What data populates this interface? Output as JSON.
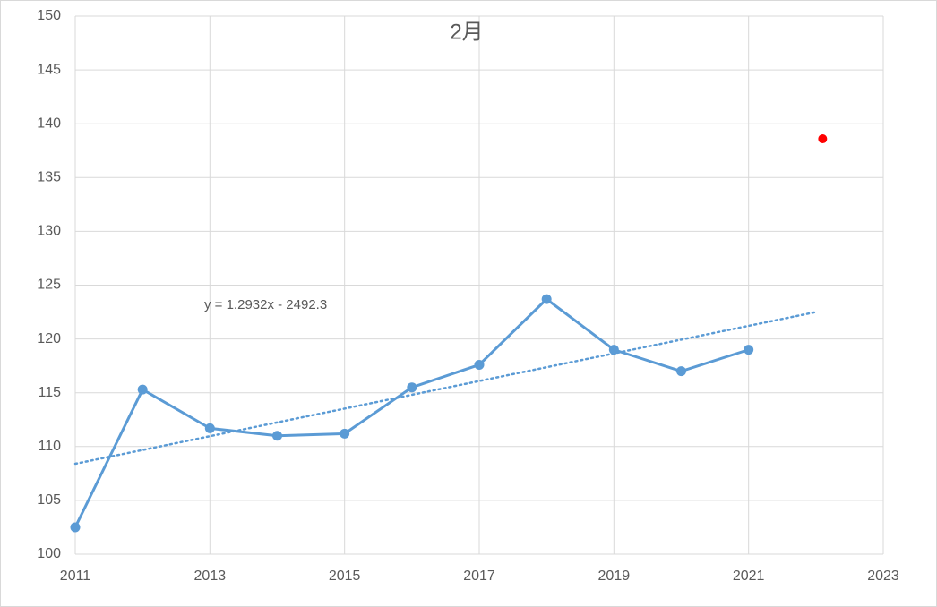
{
  "chart_data": {
    "type": "line",
    "title": "2月",
    "annotation": "y = 1.2932x - 2492.3",
    "x": [
      2011,
      2012,
      2013,
      2014,
      2015,
      2016,
      2017,
      2018,
      2019,
      2020,
      2021
    ],
    "series": [
      {
        "color": "#5b9bd5",
        "values": [
          102.5,
          115.3,
          111.7,
          111.0,
          111.2,
          115.5,
          117.6,
          123.7,
          119.0,
          117.0,
          119.0
        ]
      }
    ],
    "trendline": {
      "color": "#5b9bd5",
      "style": "dotted",
      "x": [
        2011,
        2022
      ],
      "values": [
        108.4,
        122.5
      ]
    },
    "highlight": {
      "color": "#ff0000",
      "x": [
        2022.1
      ],
      "values": [
        138.6
      ]
    },
    "xlim": [
      2011,
      2023
    ],
    "xticks": [
      2011,
      2013,
      2015,
      2017,
      2019,
      2021,
      2023
    ],
    "ylim": [
      100,
      150
    ],
    "yticks": [
      100,
      105,
      110,
      115,
      120,
      125,
      130,
      135,
      140,
      145,
      150
    ],
    "grid": true
  }
}
